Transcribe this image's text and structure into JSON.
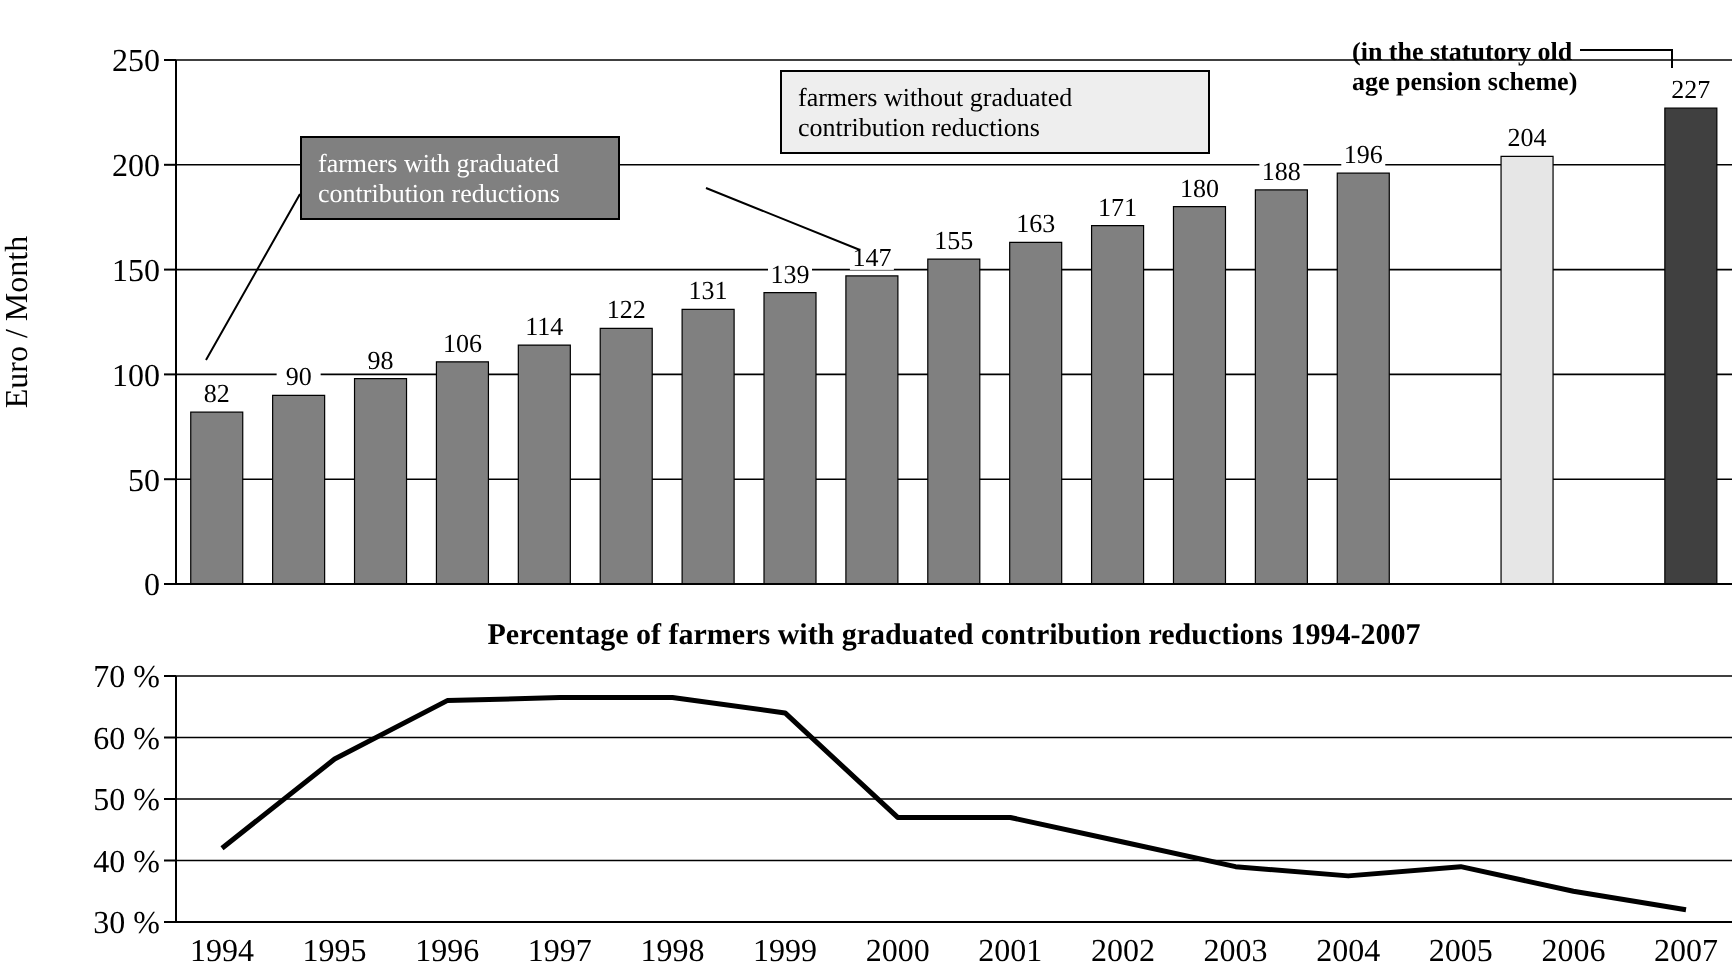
{
  "chart_data": [
    {
      "type": "bar",
      "ylabel": "Euro / Month",
      "categories": [
        null,
        null,
        null,
        null,
        null,
        null,
        null,
        null,
        null,
        null,
        null,
        null,
        null,
        null,
        null,
        null,
        null,
        null,
        null
      ],
      "values": [
        82,
        90,
        98,
        106,
        114,
        122,
        131,
        139,
        147,
        155,
        163,
        171,
        180,
        188,
        196,
        null,
        204,
        null,
        227
      ],
      "colors": [
        "#808080",
        "#808080",
        "#808080",
        "#808080",
        "#808080",
        "#808080",
        "#808080",
        "#808080",
        "#808080",
        "#808080",
        "#808080",
        "#808080",
        "#808080",
        "#808080",
        "#808080",
        null,
        "#e6e6e6",
        null,
        "#404040"
      ],
      "ylim": [
        0,
        250
      ],
      "yticks": [
        0,
        50,
        100,
        150,
        200,
        250
      ],
      "grid": "y",
      "data_labels": true,
      "annotations": [
        "farmers with graduated contribution reductions",
        "farmers without graduated contribution reductions",
        "(in the statutory old age pension scheme)"
      ]
    },
    {
      "type": "line",
      "title": "Percentage of farmers with graduated contribution reductions 1994-2007",
      "categories": [
        "1994",
        "1995",
        "1996",
        "1997",
        "1998",
        "1999",
        "2000",
        "2001",
        "2002",
        "2003",
        "2004",
        "2005",
        "2006",
        "2007"
      ],
      "series": [
        {
          "color": "#000000",
          "values": [
            42,
            56.5,
            66,
            66.5,
            66.5,
            64,
            47,
            47,
            43,
            39,
            37.5,
            39,
            35,
            32
          ]
        }
      ],
      "ylim": [
        30,
        70
      ],
      "yticks": [
        {
          "value": 30,
          "label": "30 %"
        },
        {
          "value": 40,
          "label": "40 %"
        },
        {
          "value": 50,
          "label": "50 %"
        },
        {
          "value": 60,
          "label": "60 %"
        },
        {
          "value": 70,
          "label": "70 %"
        }
      ],
      "grid": "y",
      "marker": "none",
      "line_style": "solid"
    }
  ]
}
